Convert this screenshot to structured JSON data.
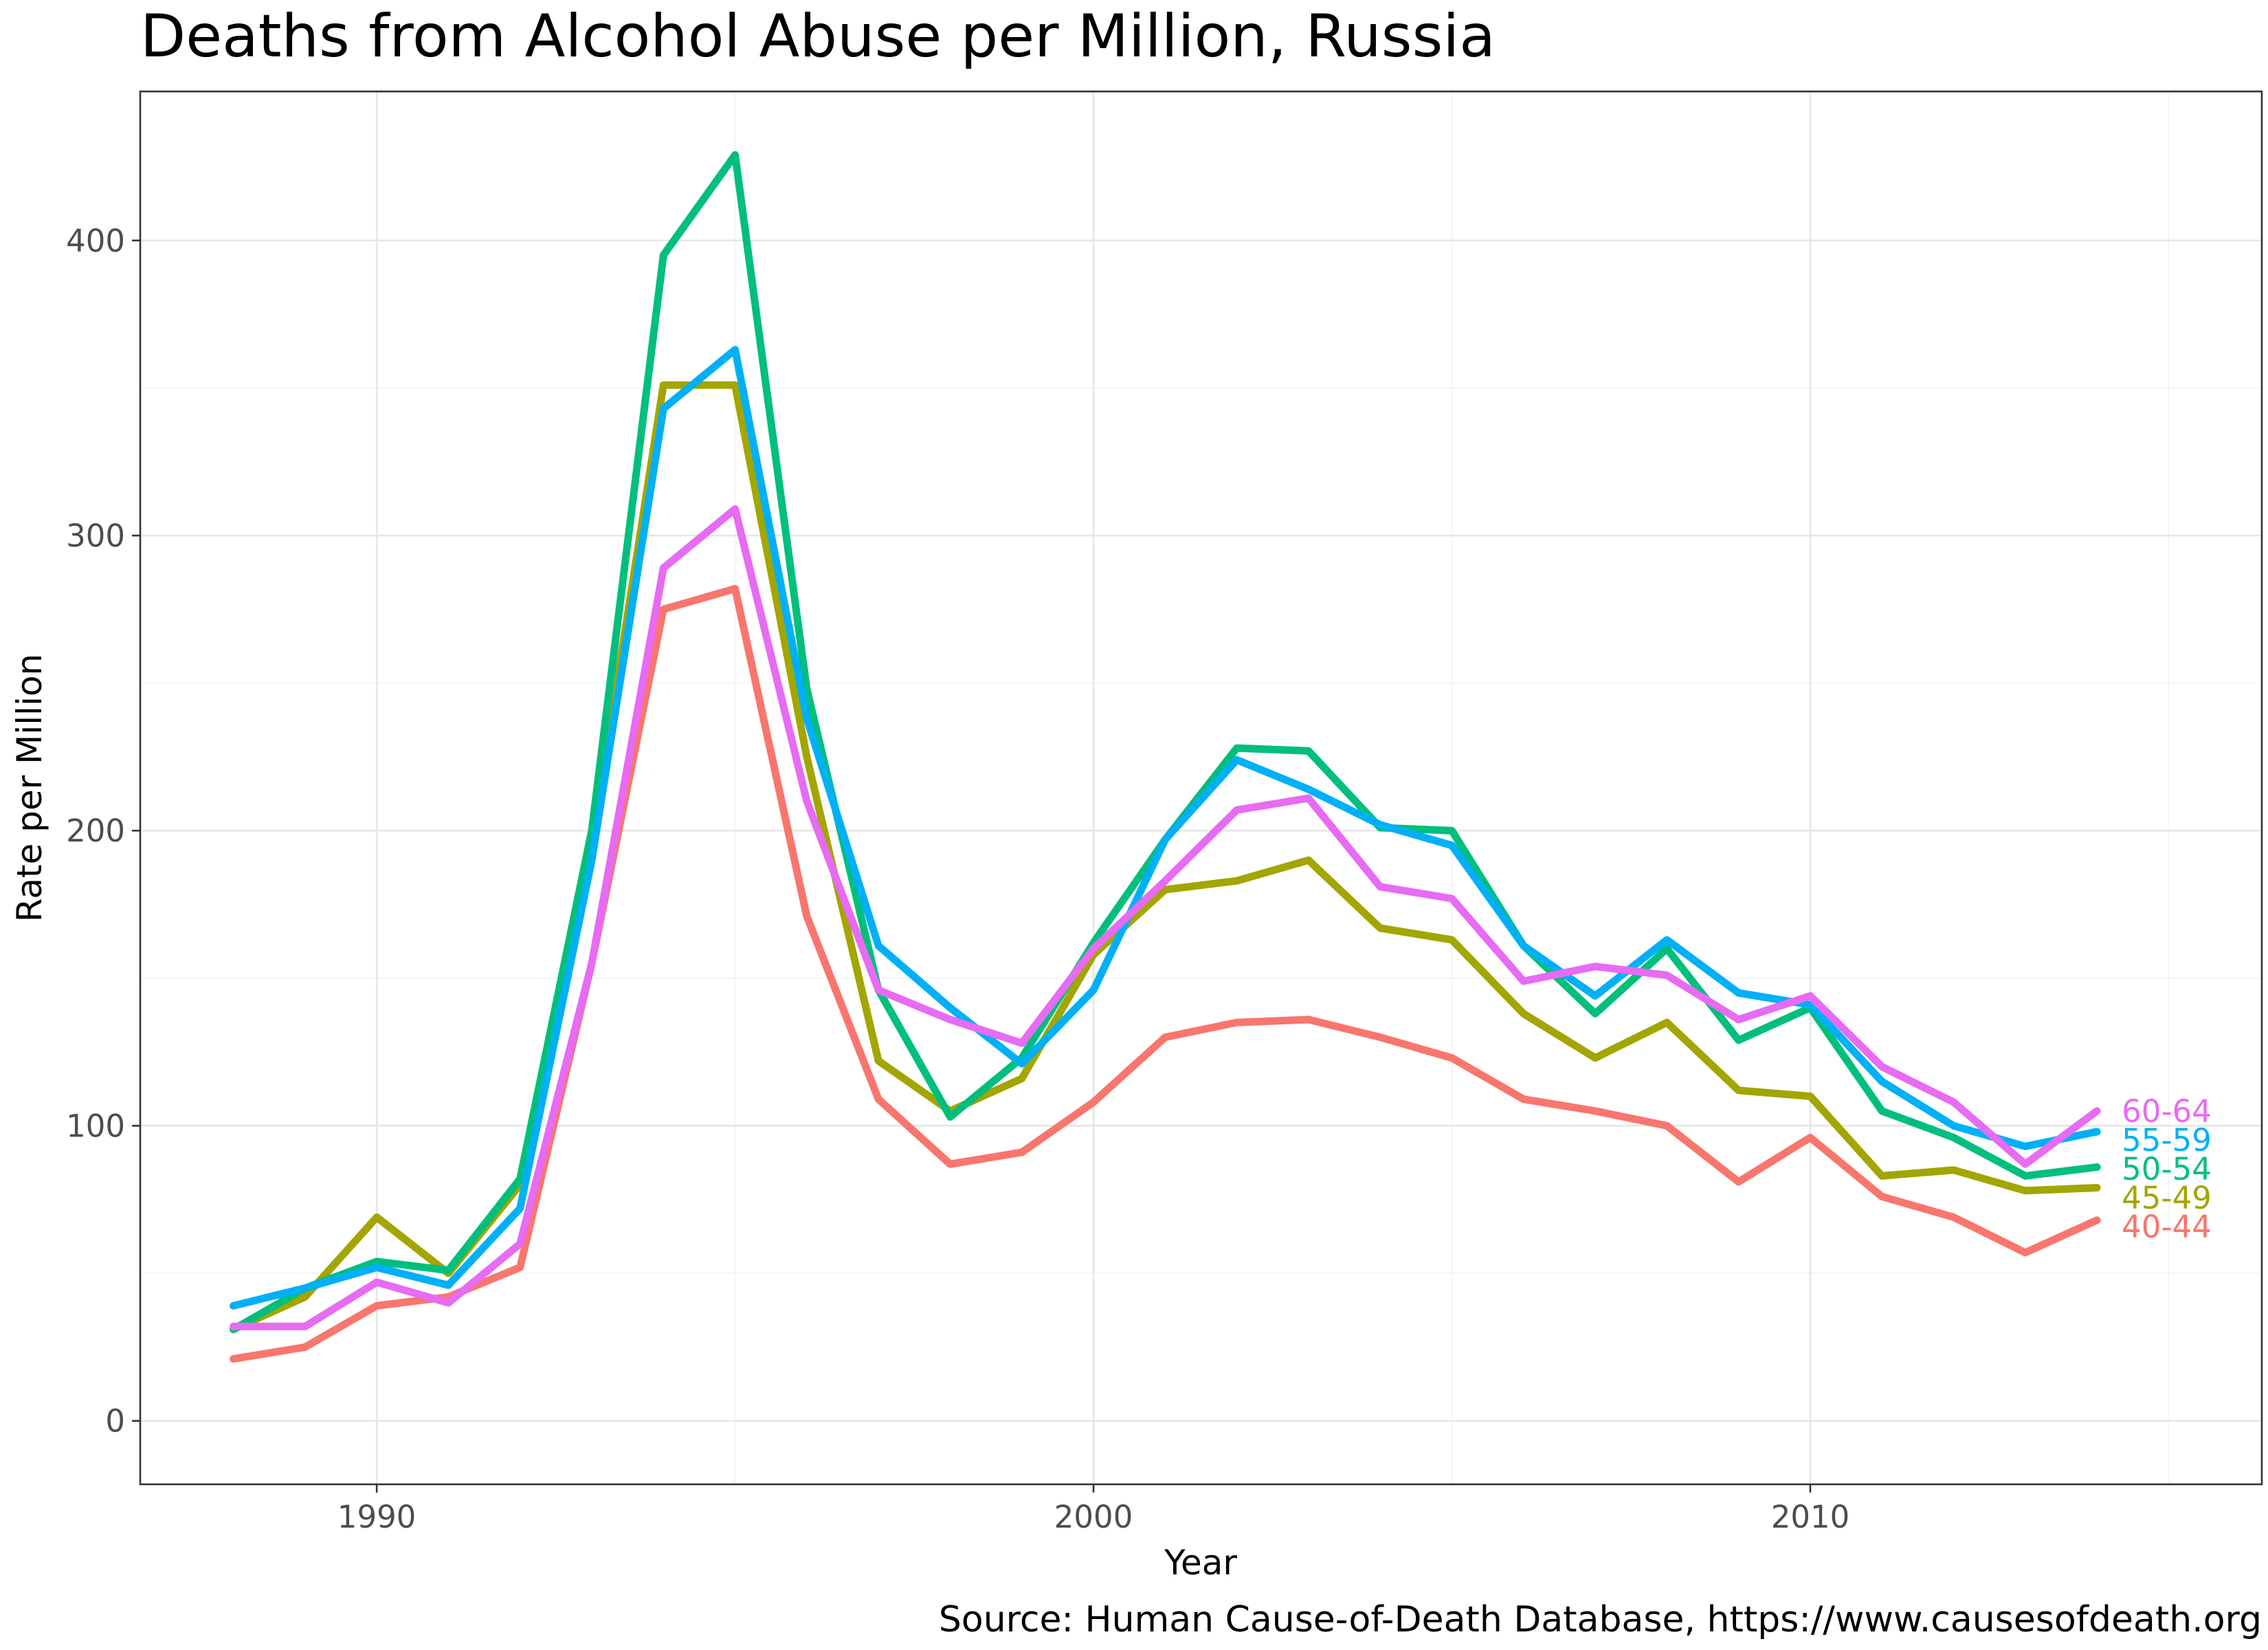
{
  "chart_data": {
    "type": "line",
    "title": "Deaths from Alcohol Abuse per Million, Russia",
    "xlabel": "Year",
    "ylabel": "Rate per Million",
    "caption": "Source: Human Cause-of-Death Database, https://www.causesofdeath.org",
    "xlim": [
      1986.7,
      2016.3
    ],
    "ylim": [
      -21.5,
      450.5
    ],
    "x_ticks": [
      1990,
      2000,
      2010
    ],
    "y_ticks": [
      0,
      100,
      200,
      300,
      400
    ],
    "grid": true,
    "legend": "none",
    "x": [
      1988,
      1989,
      1990,
      1991,
      1992,
      1993,
      1994,
      1995,
      1996,
      1997,
      1998,
      1999,
      2000,
      2001,
      2002,
      2003,
      2004,
      2005,
      2006,
      2007,
      2008,
      2009,
      2010,
      2011,
      2012,
      2013,
      2014
    ],
    "series": [
      {
        "name": "40-44",
        "color": "#F8766D",
        "values": [
          21,
          25,
          39,
          42,
          52,
          155,
          275,
          282,
          171,
          109,
          87,
          91,
          108,
          130,
          135,
          136,
          130,
          123,
          109,
          105,
          100,
          81,
          96,
          76,
          69,
          57,
          68
        ]
      },
      {
        "name": "45-49",
        "color": "#A3A500",
        "values": [
          31,
          42,
          69,
          50,
          80,
          195,
          351,
          351,
          225,
          122,
          105,
          116,
          158,
          180,
          183,
          190,
          167,
          163,
          138,
          123,
          135,
          112,
          110,
          83,
          85,
          78,
          79
        ]
      },
      {
        "name": "50-54",
        "color": "#00BF7D",
        "values": [
          31,
          45,
          54,
          51,
          82,
          200,
          395,
          429,
          248,
          146,
          103,
          123,
          162,
          197,
          228,
          227,
          201,
          200,
          161,
          138,
          160,
          129,
          140,
          105,
          96,
          83,
          86
        ]
      },
      {
        "name": "55-59",
        "color": "#00B0F6",
        "values": [
          39,
          45,
          52,
          46,
          72,
          190,
          343,
          363,
          238,
          161,
          140,
          121,
          146,
          197,
          224,
          214,
          202,
          195,
          161,
          144,
          163,
          145,
          141,
          115,
          100,
          93,
          98
        ]
      },
      {
        "name": "60-64",
        "color": "#E76BF3",
        "values": [
          32,
          32,
          47,
          40,
          60,
          155,
          289,
          309,
          210,
          146,
          136,
          128,
          160,
          183,
          207,
          211,
          181,
          177,
          149,
          154,
          151,
          136,
          144,
          120,
          108,
          87,
          105
        ]
      }
    ]
  }
}
